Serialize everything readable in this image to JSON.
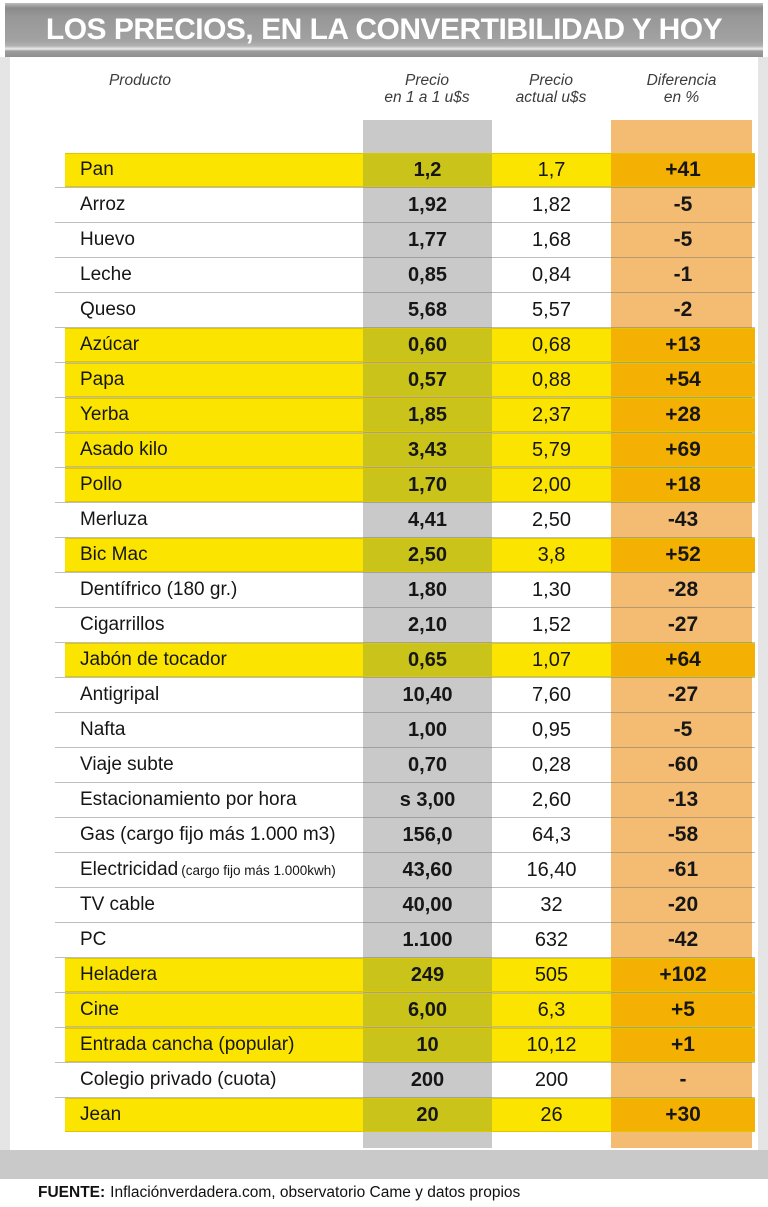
{
  "title": "LOS PRECIOS, EN LA CONVERTIBILIDAD Y HOY",
  "columns": {
    "product": "Producto",
    "price_convertibility_line1": "Precio",
    "price_convertibility_line2": "en 1 a 1 u$s",
    "price_current_line1": "Precio",
    "price_current_line2": "actual u$s",
    "difference_line1": "Diferencia",
    "difference_line2": "en %"
  },
  "source": {
    "label": "FUENTE:",
    "text": "Inflaciónverdadera.com, observatorio Came y datos propios"
  },
  "colors": {
    "titlebar_gray": "#9a9a9a",
    "band_gray": "#c9c9c9",
    "band_orange": "#f3bc72",
    "highlight_yellow": "#fbe400",
    "highlight_olive": "#c9c31a",
    "highlight_amber": "#f4b103"
  },
  "chart_data": {
    "type": "table",
    "title": "LOS PRECIOS, EN LA CONVERTIBILIDAD Y HOY",
    "columns": [
      "Producto",
      "Precio en 1 a 1 u$s",
      "Precio actual u$s",
      "Diferencia en %"
    ],
    "rows": [
      {
        "product": "Pan",
        "note": "",
        "price_1to1": "1,2",
        "price_now": "1,7",
        "diff_pct": "+41",
        "highlighted": true
      },
      {
        "product": "Arroz",
        "note": "",
        "price_1to1": "1,92",
        "price_now": "1,82",
        "diff_pct": "-5",
        "highlighted": false
      },
      {
        "product": "Huevo",
        "note": "",
        "price_1to1": "1,77",
        "price_now": "1,68",
        "diff_pct": "-5",
        "highlighted": false
      },
      {
        "product": "Leche",
        "note": "",
        "price_1to1": "0,85",
        "price_now": "0,84",
        "diff_pct": "-1",
        "highlighted": false
      },
      {
        "product": "Queso",
        "note": "",
        "price_1to1": "5,68",
        "price_now": "5,57",
        "diff_pct": "-2",
        "highlighted": false
      },
      {
        "product": "Azúcar",
        "note": "",
        "price_1to1": "0,60",
        "price_now": "0,68",
        "diff_pct": "+13",
        "highlighted": true
      },
      {
        "product": "Papa",
        "note": "",
        "price_1to1": "0,57",
        "price_now": "0,88",
        "diff_pct": "+54",
        "highlighted": true
      },
      {
        "product": "Yerba",
        "note": "",
        "price_1to1": "1,85",
        "price_now": "2,37",
        "diff_pct": "+28",
        "highlighted": true
      },
      {
        "product": "Asado kilo",
        "note": "",
        "price_1to1": "3,43",
        "price_now": "5,79",
        "diff_pct": "+69",
        "highlighted": true
      },
      {
        "product": "Pollo",
        "note": "",
        "price_1to1": "1,70",
        "price_now": "2,00",
        "diff_pct": "+18",
        "highlighted": true
      },
      {
        "product": "Merluza",
        "note": "",
        "price_1to1": "4,41",
        "price_now": "2,50",
        "diff_pct": "-43",
        "highlighted": false
      },
      {
        "product": "Bic Mac",
        "note": "",
        "price_1to1": "2,50",
        "price_now": "3,8",
        "diff_pct": "+52",
        "highlighted": true
      },
      {
        "product": "Dentífrico (180 gr.)",
        "note": "",
        "price_1to1": "1,80",
        "price_now": "1,30",
        "diff_pct": "-28",
        "highlighted": false
      },
      {
        "product": "Cigarrillos",
        "note": "",
        "price_1to1": "2,10",
        "price_now": "1,52",
        "diff_pct": "-27",
        "highlighted": false
      },
      {
        "product": "Jabón de tocador",
        "note": "",
        "price_1to1": "0,65",
        "price_now": "1,07",
        "diff_pct": "+64",
        "highlighted": true
      },
      {
        "product": "Antigripal",
        "note": "",
        "price_1to1": "10,40",
        "price_now": "7,60",
        "diff_pct": "-27",
        "highlighted": false
      },
      {
        "product": "Nafta",
        "note": "",
        "price_1to1": "1,00",
        "price_now": "0,95",
        "diff_pct": "-5",
        "highlighted": false
      },
      {
        "product": "Viaje subte",
        "note": "",
        "price_1to1": "0,70",
        "price_now": "0,28",
        "diff_pct": "-60",
        "highlighted": false
      },
      {
        "product": "Estacionamiento por hora",
        "note": "",
        "price_1to1": "s 3,00",
        "price_now": "2,60",
        "diff_pct": "-13",
        "highlighted": false
      },
      {
        "product": "Gas (cargo fijo más 1.000 m3)",
        "note": "",
        "price_1to1": "156,0",
        "price_now": "64,3",
        "diff_pct": "-58",
        "highlighted": false
      },
      {
        "product": "Electricidad",
        "note": "(cargo fijo más 1.000kwh)",
        "price_1to1": "43,60",
        "price_now": "16,40",
        "diff_pct": "-61",
        "highlighted": false
      },
      {
        "product": "TV cable",
        "note": "",
        "price_1to1": "40,00",
        "price_now": "32",
        "diff_pct": "-20",
        "highlighted": false
      },
      {
        "product": "PC",
        "note": "",
        "price_1to1": "1.100",
        "price_now": "632",
        "diff_pct": "-42",
        "highlighted": false
      },
      {
        "product": "Heladera",
        "note": "",
        "price_1to1": "249",
        "price_now": "505",
        "diff_pct": "+102",
        "highlighted": true
      },
      {
        "product": "Cine",
        "note": "",
        "price_1to1": "6,00",
        "price_now": "6,3",
        "diff_pct": "+5",
        "highlighted": true
      },
      {
        "product": "Entrada cancha (popular)",
        "note": "",
        "price_1to1": "10",
        "price_now": "10,12",
        "diff_pct": "+1",
        "highlighted": true
      },
      {
        "product": "Colegio privado (cuota)",
        "note": "",
        "price_1to1": "200",
        "price_now": "200",
        "diff_pct": "-",
        "highlighted": false
      },
      {
        "product": "Jean",
        "note": "",
        "price_1to1": "20",
        "price_now": "26",
        "diff_pct": "+30",
        "highlighted": true
      }
    ]
  }
}
